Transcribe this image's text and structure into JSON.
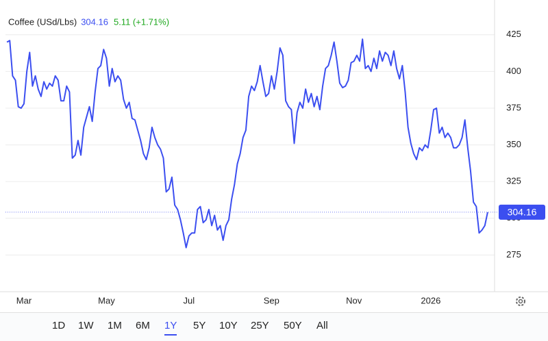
{
  "chart_data": {
    "type": "line",
    "title": "Coffee (USd/Lbs)",
    "change": "5.11 (+1.71%)",
    "color": "#3b4ef0",
    "categories": [
      null,
      null,
      null,
      null,
      null,
      null,
      "Mar",
      null,
      null,
      null,
      null,
      null,
      null,
      null,
      null,
      null,
      null,
      null,
      null,
      null,
      null,
      null,
      null,
      null,
      null,
      null,
      null,
      null,
      null,
      null,
      null,
      null,
      null,
      null,
      null,
      "May",
      null,
      null,
      null,
      null,
      null,
      null,
      null,
      null,
      null,
      null,
      null,
      null,
      null,
      null,
      null,
      null,
      null,
      null,
      null,
      null,
      null,
      null,
      null,
      null,
      null,
      null,
      null,
      null,
      "Jul",
      null,
      null,
      null,
      null,
      null,
      null,
      null,
      null,
      null,
      null,
      null,
      null,
      null,
      null,
      null,
      null,
      null,
      null,
      null,
      null,
      null,
      null,
      null,
      null,
      null,
      null,
      null,
      null,
      "Sep",
      null,
      null,
      null,
      null,
      null,
      null,
      null,
      null,
      null,
      null,
      null,
      null,
      null,
      null,
      null,
      null,
      null,
      null,
      null,
      null,
      null,
      null,
      null,
      null,
      null,
      null,
      null,
      null,
      "Nov",
      null,
      null,
      null,
      null,
      null,
      null,
      null,
      null,
      null,
      null,
      null,
      null,
      null,
      null,
      null,
      null,
      null,
      null,
      null,
      null,
      null,
      null,
      null,
      null,
      null,
      null,
      "2026",
      null,
      null,
      null,
      null,
      null,
      null,
      null,
      null,
      null,
      null,
      null,
      null,
      null,
      null,
      null,
      null,
      null,
      null,
      null,
      null
    ],
    "values": [
      420,
      421,
      397,
      394,
      376,
      375,
      378,
      400,
      413,
      390,
      397,
      388,
      383,
      393,
      388,
      392,
      390,
      397,
      394,
      380,
      380,
      390,
      386,
      341,
      343,
      353,
      343,
      362,
      369,
      376,
      366,
      386,
      402,
      404,
      415,
      409,
      390,
      402,
      393,
      397,
      394,
      381,
      375,
      379,
      368,
      367,
      360,
      353,
      344,
      340,
      348,
      362,
      355,
      350,
      347,
      341,
      318,
      320,
      328,
      309,
      306,
      299,
      290,
      280,
      288,
      290,
      290,
      306,
      308,
      297,
      299,
      306,
      295,
      302,
      292,
      295,
      285,
      295,
      299,
      313,
      323,
      337,
      344,
      355,
      360,
      383,
      390,
      387,
      393,
      404,
      393,
      383,
      385,
      397,
      388,
      400,
      416,
      411,
      380,
      376,
      374,
      351,
      372,
      379,
      375,
      388,
      379,
      385,
      376,
      383,
      374,
      390,
      402,
      404,
      411,
      420,
      407,
      392,
      389,
      390,
      394,
      406,
      407,
      411,
      407,
      422,
      402,
      404,
      400,
      409,
      402,
      414,
      407,
      413,
      411,
      404,
      414,
      402,
      395,
      404,
      386,
      362,
      351,
      344,
      340,
      348,
      346,
      350,
      348,
      360,
      374,
      375,
      358,
      362,
      355,
      358,
      355,
      348,
      348,
      350,
      355,
      367,
      348,
      332,
      311,
      308,
      290,
      292,
      295,
      304.16
    ],
    "ylim": [
      250,
      444
    ],
    "yticks": [
      275,
      300,
      325,
      350,
      375,
      400,
      425
    ],
    "grid": true,
    "ranges": [
      "1D",
      "1W",
      "1M",
      "6M",
      "1Y",
      "5Y",
      "10Y",
      "25Y",
      "50Y",
      "All"
    ],
    "selected_range": "1Y"
  }
}
